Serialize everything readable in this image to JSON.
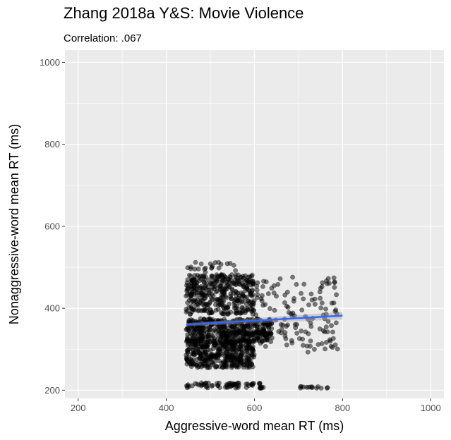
{
  "chart_data": {
    "type": "scatter",
    "title": "Zhang 2018a Y&S: Movie Violence",
    "subtitle": "Correlation: .067",
    "xlabel": "Aggressive-word mean RT (ms)",
    "ylabel": "Nonaggressive-word mean RT (ms)",
    "xlim": [
      170,
      1030
    ],
    "ylim": [
      180,
      1030
    ],
    "xticks": [
      200,
      400,
      600,
      800,
      1000
    ],
    "yticks": [
      200,
      400,
      600,
      800,
      1000
    ],
    "grid": true,
    "point_color": "#000000",
    "panel_color": "#EBEBEB",
    "fit_color": "#3366FF",
    "point_clusters": [
      {
        "x": [
          445,
          600
        ],
        "y": [
          255,
          320
        ],
        "n": 380
      },
      {
        "x": [
          445,
          640
        ],
        "y": [
          318,
          375
        ],
        "n": 460
      },
      {
        "x": [
          445,
          600
        ],
        "y": [
          385,
          482
        ],
        "n": 380
      },
      {
        "x": [
          600,
          790
        ],
        "y": [
          290,
          480
        ],
        "n": 130
      },
      {
        "x": [
          445,
          620
        ],
        "y": [
          205,
          218
        ],
        "n": 70
      },
      {
        "x": [
          700,
          770
        ],
        "y": [
          205,
          210
        ],
        "n": 14
      },
      {
        "x": [
          445,
          560
        ],
        "y": [
          485,
          512
        ],
        "n": 22
      }
    ],
    "trend_line": {
      "x": [
        445,
        800
      ],
      "y": [
        360,
        382
      ]
    }
  }
}
